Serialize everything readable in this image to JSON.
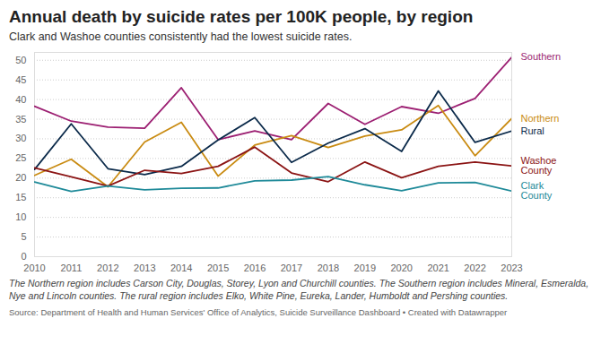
{
  "chart_data": {
    "type": "line",
    "title": "Annual death by suicide rates per 100K people, by region",
    "subtitle": "Clark and Washoe counties consistently had the lowest suicide rates.",
    "caption": "The Northern region includes Carson City, Douglas, Storey, Lyon and Churchill counties. The Southern region includes Mineral, Esmeralda, Nye and Lincoln counties. The rural region includes Elko, White Pine, Eureka, Lander, Humboldt and Pershing counties.",
    "source": "Source: Department of Health and Human Services' Office of Analytics, Suicide Surveillance Dashboard • Created with Datawrapper",
    "x": [
      2010,
      2011,
      2012,
      2013,
      2014,
      2015,
      2016,
      2017,
      2018,
      2019,
      2020,
      2021,
      2022,
      2023
    ],
    "xlim": [
      2010,
      2023
    ],
    "xticks": [
      2010,
      2011,
      2012,
      2013,
      2014,
      2015,
      2016,
      2017,
      2018,
      2019,
      2020,
      2021,
      2022,
      2023
    ],
    "ylim": [
      0,
      52
    ],
    "yticks": [
      0,
      5,
      10,
      15,
      20,
      25,
      30,
      35,
      40,
      45,
      50
    ],
    "grid": true,
    "series": [
      {
        "name": "Southern",
        "color": "#9c1f72",
        "values": [
          38.3,
          34.5,
          33,
          32.7,
          43,
          29.8,
          32,
          29.8,
          39,
          33.7,
          38.2,
          36.5,
          40.3,
          50.8
        ]
      },
      {
        "name": "Northern",
        "color": "#c98b12",
        "values": [
          20.7,
          24.8,
          17.8,
          29.2,
          34.2,
          20.5,
          28.4,
          30.8,
          27.8,
          30.7,
          32.3,
          38.5,
          25.7,
          35.2
        ]
      },
      {
        "name": "Rural",
        "color": "#0b2a4a",
        "values": [
          22.2,
          33.8,
          22.4,
          20.9,
          23,
          29.7,
          35.4,
          24,
          28.9,
          32.6,
          26.8,
          42.2,
          29.1,
          32
        ]
      },
      {
        "name": "Washoe County",
        "color": "#8b1414",
        "values": [
          22.6,
          20.3,
          18,
          22,
          21.2,
          23,
          27.9,
          21.3,
          19.1,
          24.1,
          20.1,
          23,
          24.1,
          23.1
        ]
      },
      {
        "name": "Clark County",
        "color": "#1f8a99",
        "values": [
          19,
          16.6,
          18,
          17,
          17.4,
          17.5,
          19.3,
          19.5,
          20.4,
          18.3,
          16.8,
          18.8,
          18.9,
          16.7
        ]
      }
    ]
  }
}
